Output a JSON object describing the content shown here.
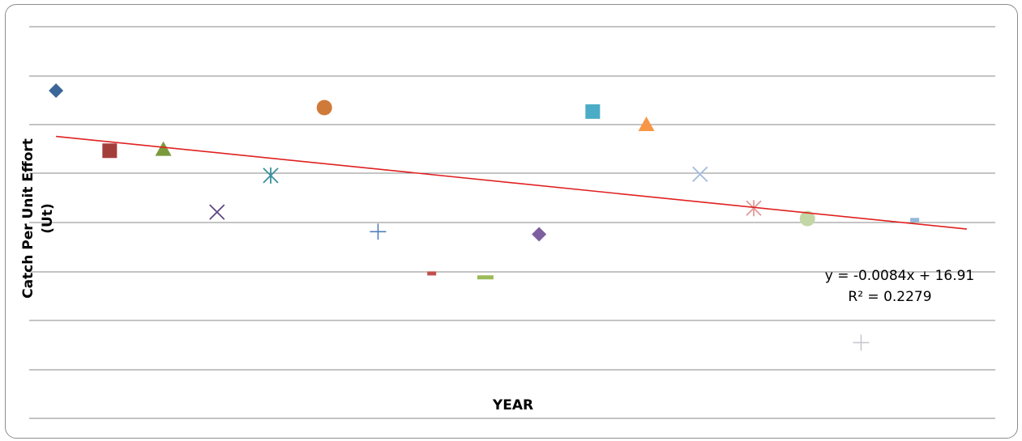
{
  "chart_data": {
    "type": "scatter",
    "title": "",
    "xlabel": "YEAR",
    "ylabel_line1": "Catch Per Unit Effort",
    "ylabel_line2": "(Ut)",
    "grid": true,
    "trendline": {
      "type": "linear",
      "slope": -0.0084,
      "intercept": 16.91,
      "color": "#e02020",
      "equation_label": "y = -0.0084x + 16.91",
      "r2_label": "R² = 0.2279"
    },
    "series": [
      {
        "x": 1,
        "y": 15.01,
        "marker": "diamond",
        "color": "#3c669a"
      },
      {
        "x": 2,
        "y": 14.55,
        "marker": "square",
        "color": "#a23f3b"
      },
      {
        "x": 3,
        "y": 14.56,
        "marker": "triangle",
        "color": "#7a9a3c"
      },
      {
        "x": 4,
        "y": 14.08,
        "marker": "x",
        "color": "#5f4781"
      },
      {
        "x": 5,
        "y": 14.36,
        "marker": "star",
        "color": "#3a8f9c"
      },
      {
        "x": 6,
        "y": 14.88,
        "marker": "circle",
        "color": "#d07a3a"
      },
      {
        "x": 7,
        "y": 13.93,
        "marker": "plus",
        "color": "#4f7fba"
      },
      {
        "x": 8,
        "y": 13.61,
        "marker": "dash",
        "color": "#c0504d"
      },
      {
        "x": 9,
        "y": 13.58,
        "marker": "dash",
        "color": "#9bbb59"
      },
      {
        "x": 10,
        "y": 13.91,
        "marker": "diamond",
        "color": "#7e5fa0"
      },
      {
        "x": 11,
        "y": 14.85,
        "marker": "square",
        "color": "#4bacc6"
      },
      {
        "x": 12,
        "y": 14.75,
        "marker": "triangle",
        "color": "#f79646"
      },
      {
        "x": 13,
        "y": 14.37,
        "marker": "x",
        "color": "#a5bddb"
      },
      {
        "x": 14,
        "y": 14.11,
        "marker": "star",
        "color": "#e09a97"
      },
      {
        "x": 15,
        "y": 14.03,
        "marker": "circle",
        "color": "#c3d6a5"
      },
      {
        "x": 16,
        "y": 13.08,
        "marker": "plus",
        "color": "#c8c8d0"
      },
      {
        "x": 17,
        "y": 14.02,
        "marker": "dash",
        "color": "#92b8dc"
      }
    ]
  }
}
